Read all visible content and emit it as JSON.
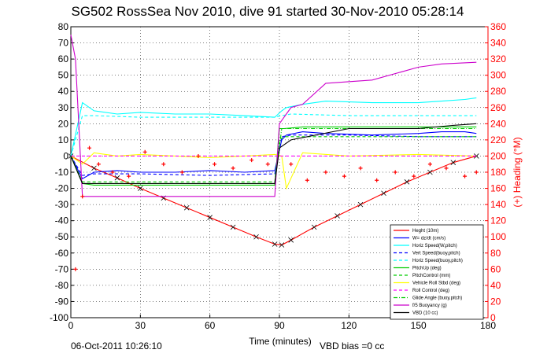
{
  "chart_data": {
    "type": "line",
    "title": "SG502 RossSea Nov 2010, dive 91 started 30-Nov-2010 05:28:14",
    "xlabel": "Time (minutes)",
    "ylabel_right": "(+) Heading (°M)",
    "xlim": [
      0,
      180
    ],
    "ylim": [
      -100,
      80
    ],
    "ylim_right": [
      0,
      360
    ],
    "xticks": [
      0,
      30,
      60,
      90,
      120,
      150,
      180
    ],
    "yticks": [
      80,
      70,
      60,
      50,
      40,
      30,
      20,
      10,
      0,
      -10,
      -20,
      -30,
      -40,
      -50,
      -60,
      -70,
      -80,
      -90,
      -100
    ],
    "yticks_right": [
      360,
      340,
      320,
      300,
      280,
      260,
      240,
      220,
      200,
      180,
      160,
      140,
      120,
      100,
      80,
      60,
      40,
      20,
      0
    ],
    "grid": true,
    "legend_position": "bottom-right",
    "colors": {
      "heading": "#ff0000",
      "right_axis": "#ff0000",
      "left_axis": "#000000"
    },
    "series": [
      {
        "name": "Heght (10m)",
        "color": "#ff0000",
        "style": "solid",
        "marker": "x",
        "x": [
          0,
          10,
          20,
          30,
          40,
          50,
          60,
          70,
          80,
          88,
          91,
          95,
          105,
          115,
          125,
          135,
          145,
          155,
          165,
          175
        ],
        "y": [
          0,
          -7.5,
          -13.5,
          -20,
          -26,
          -32,
          -38,
          -44,
          -50,
          -54.5,
          -55,
          -52,
          -44,
          -37,
          -30,
          -23,
          -16,
          -10,
          -4,
          0
        ]
      },
      {
        "name": "W= dz/dt (cm/s)",
        "color": "#0000ff",
        "style": "solid",
        "x": [
          0,
          5,
          10,
          20,
          30,
          45,
          60,
          75,
          88,
          91,
          93,
          100,
          110,
          130,
          150,
          160,
          170,
          175
        ],
        "y": [
          0,
          -14,
          -10,
          -9,
          -10,
          -10,
          -9,
          -10,
          -9,
          10,
          13,
          15,
          14,
          13,
          14,
          15,
          15,
          14
        ]
      },
      {
        "name": "Horiz Speed(W,pitch)",
        "color": "#00ffff",
        "style": "solid",
        "x": [
          0,
          5,
          10,
          20,
          30,
          45,
          60,
          75,
          88,
          91,
          93,
          100,
          110,
          130,
          150,
          160,
          170,
          175
        ],
        "y": [
          0,
          33,
          28,
          26,
          27,
          26,
          26,
          25,
          24,
          28,
          30,
          32,
          34,
          33,
          33,
          34,
          35,
          36
        ]
      },
      {
        "name": "Vert Speed(buoy,pitch)",
        "color": "#0000ff",
        "style": "dashed",
        "x": [
          0,
          5,
          10,
          30,
          60,
          88,
          91,
          95,
          120,
          150,
          175
        ],
        "y": [
          0,
          -12,
          -11,
          -11,
          -12,
          -11,
          12,
          13,
          13,
          12,
          12
        ]
      },
      {
        "name": "Horiz Speed(buoy,pitch)",
        "color": "#00ffff",
        "style": "dashed",
        "x": [
          0,
          5,
          10,
          30,
          60,
          88,
          91,
          95,
          120,
          150,
          175
        ],
        "y": [
          0,
          25,
          25,
          24,
          24,
          24,
          25,
          26,
          25,
          25,
          25
        ]
      },
      {
        "name": "PitchUp (deg)",
        "color": "#00cc00",
        "style": "solid",
        "x": [
          0,
          5,
          10,
          30,
          60,
          88,
          90,
          92,
          100,
          120,
          150,
          175
        ],
        "y": [
          0,
          -17,
          -18,
          -18,
          -18,
          -18,
          17,
          17,
          18,
          18,
          18,
          18
        ]
      },
      {
        "name": "PitchControl (mm)",
        "color": "#00cc00",
        "style": "dashed",
        "x": [
          0,
          5,
          10,
          30,
          60,
          88,
          90,
          92,
          120,
          150,
          175
        ],
        "y": [
          0,
          -16,
          -16,
          -16,
          -16,
          -16,
          10,
          12,
          12,
          12,
          12
        ]
      },
      {
        "name": "Vehicle Roll Stbd (deg)",
        "color": "#ffff00",
        "style": "solid",
        "x": [
          0,
          5,
          10,
          20,
          30,
          45,
          60,
          75,
          88,
          91,
          93,
          100,
          120,
          150,
          175
        ],
        "y": [
          0,
          -5,
          2,
          0,
          1,
          0,
          -1,
          0,
          1,
          0,
          -20,
          2,
          0,
          1,
          0
        ]
      },
      {
        "name": "Roll Control (deg)",
        "color": "#ff00ff",
        "style": "dashed",
        "x": [
          0,
          5,
          30,
          60,
          88,
          91,
          120,
          150,
          175
        ],
        "y": [
          0,
          0,
          0,
          0,
          0,
          0,
          0,
          0,
          0
        ]
      },
      {
        "name": "Glide Angle (buoy,pitch)",
        "color": "#00cc00",
        "style": "dashdot",
        "x": [
          0,
          5,
          30,
          60,
          88,
          91,
          120,
          150,
          175
        ],
        "y": [
          0,
          -17,
          -17,
          -17,
          -17,
          17,
          17,
          17,
          17
        ]
      },
      {
        "name": "f/5 Buoyancy (g)",
        "color": "#cc00cc",
        "style": "solid",
        "x": [
          0,
          2,
          5,
          30,
          60,
          88,
          90,
          95,
          100,
          110,
          130,
          150,
          160,
          175
        ],
        "y": [
          75,
          60,
          -25,
          -25,
          -25,
          -25,
          20,
          30,
          32,
          45,
          47,
          55,
          57,
          58
        ]
      },
      {
        "name": "VBD (10 cc)",
        "color": "#000000",
        "style": "solid",
        "x": [
          0,
          5,
          30,
          60,
          88,
          90,
          95,
          120,
          150,
          165,
          175
        ],
        "y": [
          0,
          -17,
          -17,
          -17,
          -17,
          5,
          10,
          17,
          17,
          19,
          20
        ]
      }
    ],
    "heading": {
      "name": "(+) Heading (°M)",
      "color": "#ff0000",
      "x": [
        2,
        5,
        8,
        12,
        18,
        25,
        32,
        40,
        48,
        55,
        62,
        70,
        78,
        85,
        95,
        102,
        110,
        118,
        125,
        132,
        140,
        148,
        155,
        162,
        170,
        175
      ],
      "y": [
        60,
        150,
        210,
        190,
        180,
        175,
        205,
        190,
        180,
        200,
        190,
        185,
        195,
        190,
        190,
        170,
        180,
        175,
        185,
        170,
        180,
        175,
        190,
        185,
        175,
        180
      ]
    }
  },
  "footer": {
    "timestamp": "06-Oct-2011 10:26:10",
    "vbd_bias": "VBD bias =0 cc"
  }
}
